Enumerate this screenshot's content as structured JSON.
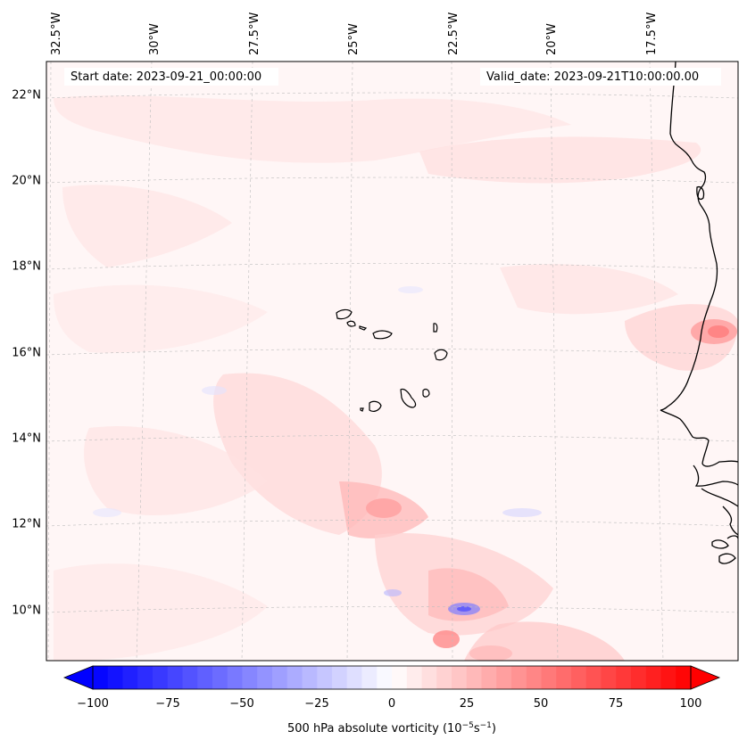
{
  "header": {
    "start_date": "Start date: 2023-09-21_00:00:00",
    "valid_date": "Valid_date: 2023-09-21T10:00:00.00"
  },
  "map": {
    "longitude_labels": [
      "32.5°W",
      "30°W",
      "27.5°W",
      "25°W",
      "22.5°W",
      "20°W",
      "17.5°W"
    ],
    "latitude_labels": [
      "22°N",
      "20°N",
      "18°N",
      "16°N",
      "14°N",
      "12°N",
      "10°N"
    ],
    "field": "500 hPa absolute vorticity",
    "background_color": "#fff6f6",
    "coastline_color": "#000000"
  },
  "colorbar": {
    "ticks": [
      "−100",
      "−75",
      "−50",
      "−25",
      "0",
      "25",
      "50",
      "75",
      "100"
    ],
    "label_text": "500 hPa absolute vorticity (10",
    "label_exp1": "−5",
    "label_mid": "s",
    "label_exp2": "−1",
    "label_close": ")",
    "min": -100,
    "max": 100,
    "min_color": "#0000ff",
    "mid_color": "#ffffff",
    "max_color": "#ff0000"
  }
}
